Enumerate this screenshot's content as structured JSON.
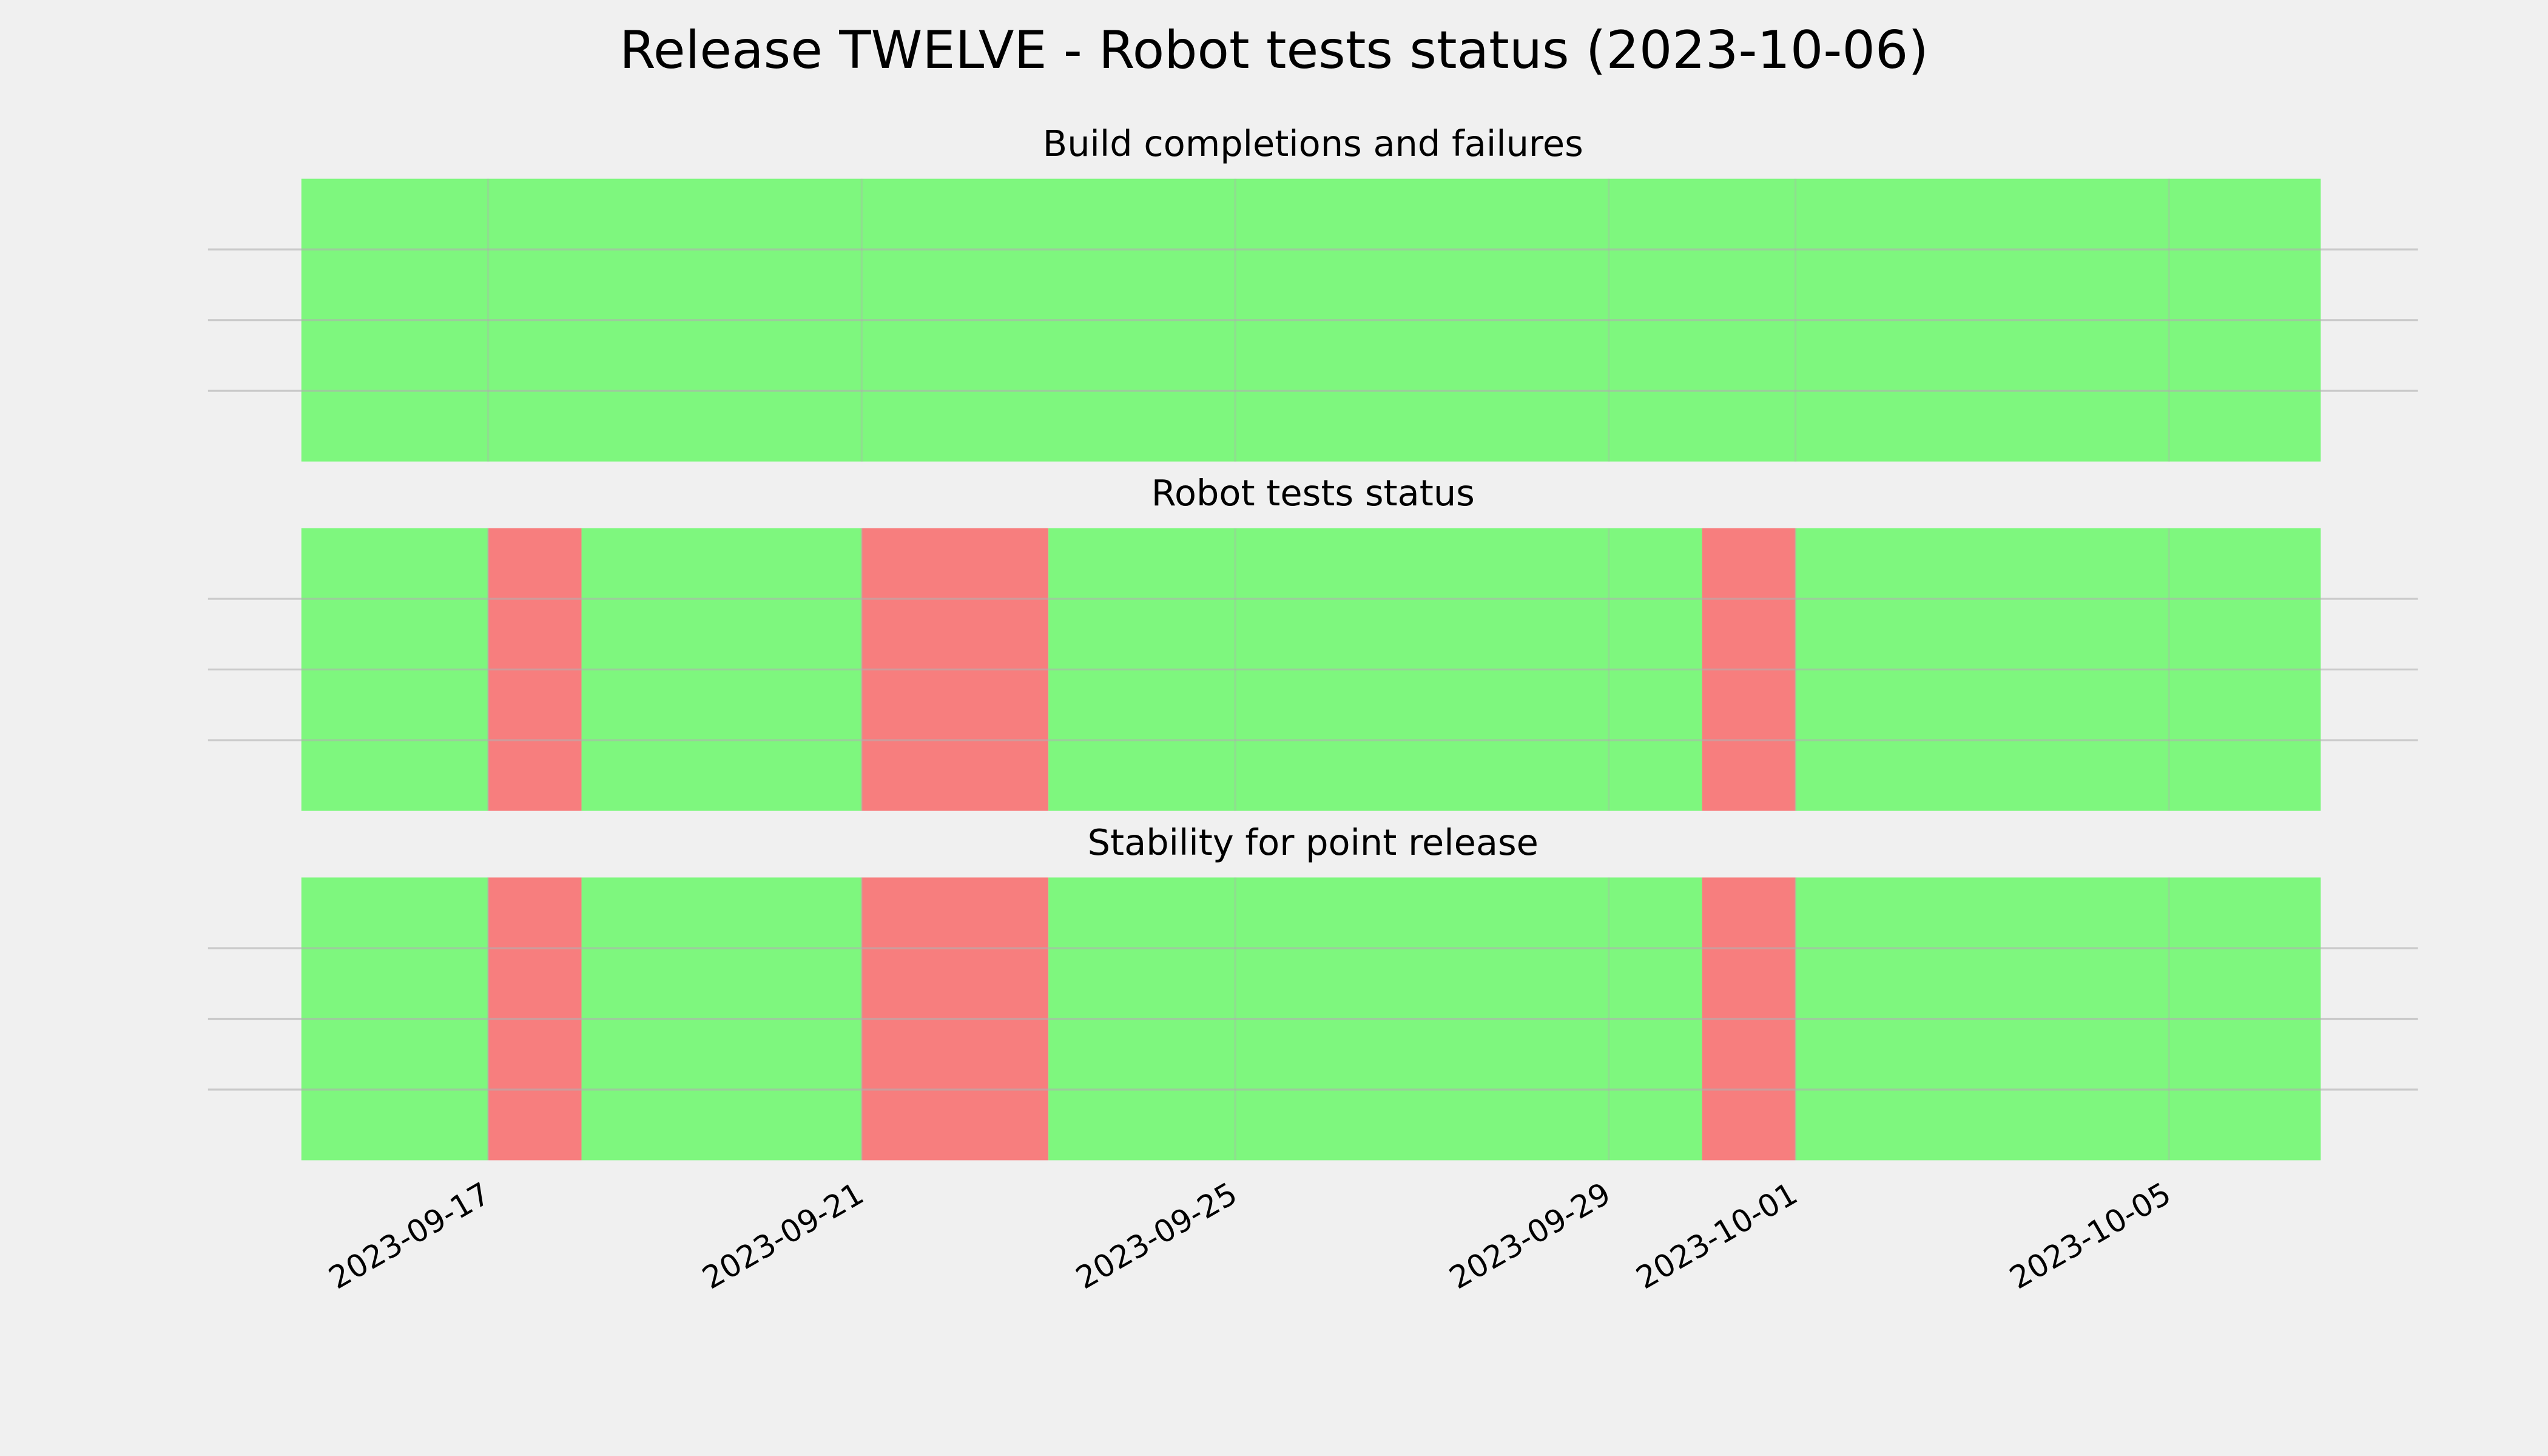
{
  "chart_data": {
    "type": "span",
    "title": "Release TWELVE - Robot tests status (2023-10-06)",
    "xlim": [
      "2023-09-14",
      "2023-10-07T16:00"
    ],
    "xticks": [
      "2023-09-17",
      "2023-09-21",
      "2023-09-25",
      "2023-09-29",
      "2023-10-01",
      "2023-10-05"
    ],
    "ylim": [
      0,
      1
    ],
    "yticks": [
      0.25,
      0.5,
      0.75
    ],
    "grid": true,
    "panels": [
      {
        "title": "Build completions and failures",
        "spans": [
          {
            "start": "2023-09-15",
            "end": "2023-10-06T15:00",
            "color": "#77f777"
          }
        ]
      },
      {
        "title": "Robot tests status",
        "spans": [
          {
            "start": "2023-09-15",
            "end": "2023-09-17",
            "color": "#77f777"
          },
          {
            "start": "2023-09-17",
            "end": "2023-09-18",
            "color": "#f77777"
          },
          {
            "start": "2023-09-18",
            "end": "2023-09-21",
            "color": "#77f777"
          },
          {
            "start": "2023-09-21",
            "end": "2023-09-23",
            "color": "#f77777"
          },
          {
            "start": "2023-09-23",
            "end": "2023-09-30",
            "color": "#77f777"
          },
          {
            "start": "2023-09-30",
            "end": "2023-10-01",
            "color": "#f77777"
          },
          {
            "start": "2023-10-01",
            "end": "2023-10-06T15:00",
            "color": "#77f777"
          }
        ]
      },
      {
        "title": "Stability for point release",
        "spans": [
          {
            "start": "2023-09-15",
            "end": "2023-09-17",
            "color": "#77f777"
          },
          {
            "start": "2023-09-17",
            "end": "2023-09-18",
            "color": "#f77777"
          },
          {
            "start": "2023-09-18",
            "end": "2023-09-21",
            "color": "#77f777"
          },
          {
            "start": "2023-09-21",
            "end": "2023-09-23",
            "color": "#f77777"
          },
          {
            "start": "2023-09-23",
            "end": "2023-09-30",
            "color": "#77f777"
          },
          {
            "start": "2023-09-30",
            "end": "2023-10-01",
            "color": "#f77777"
          },
          {
            "start": "2023-10-01",
            "end": "2023-10-06T15:00",
            "color": "#77f777"
          }
        ]
      }
    ]
  }
}
